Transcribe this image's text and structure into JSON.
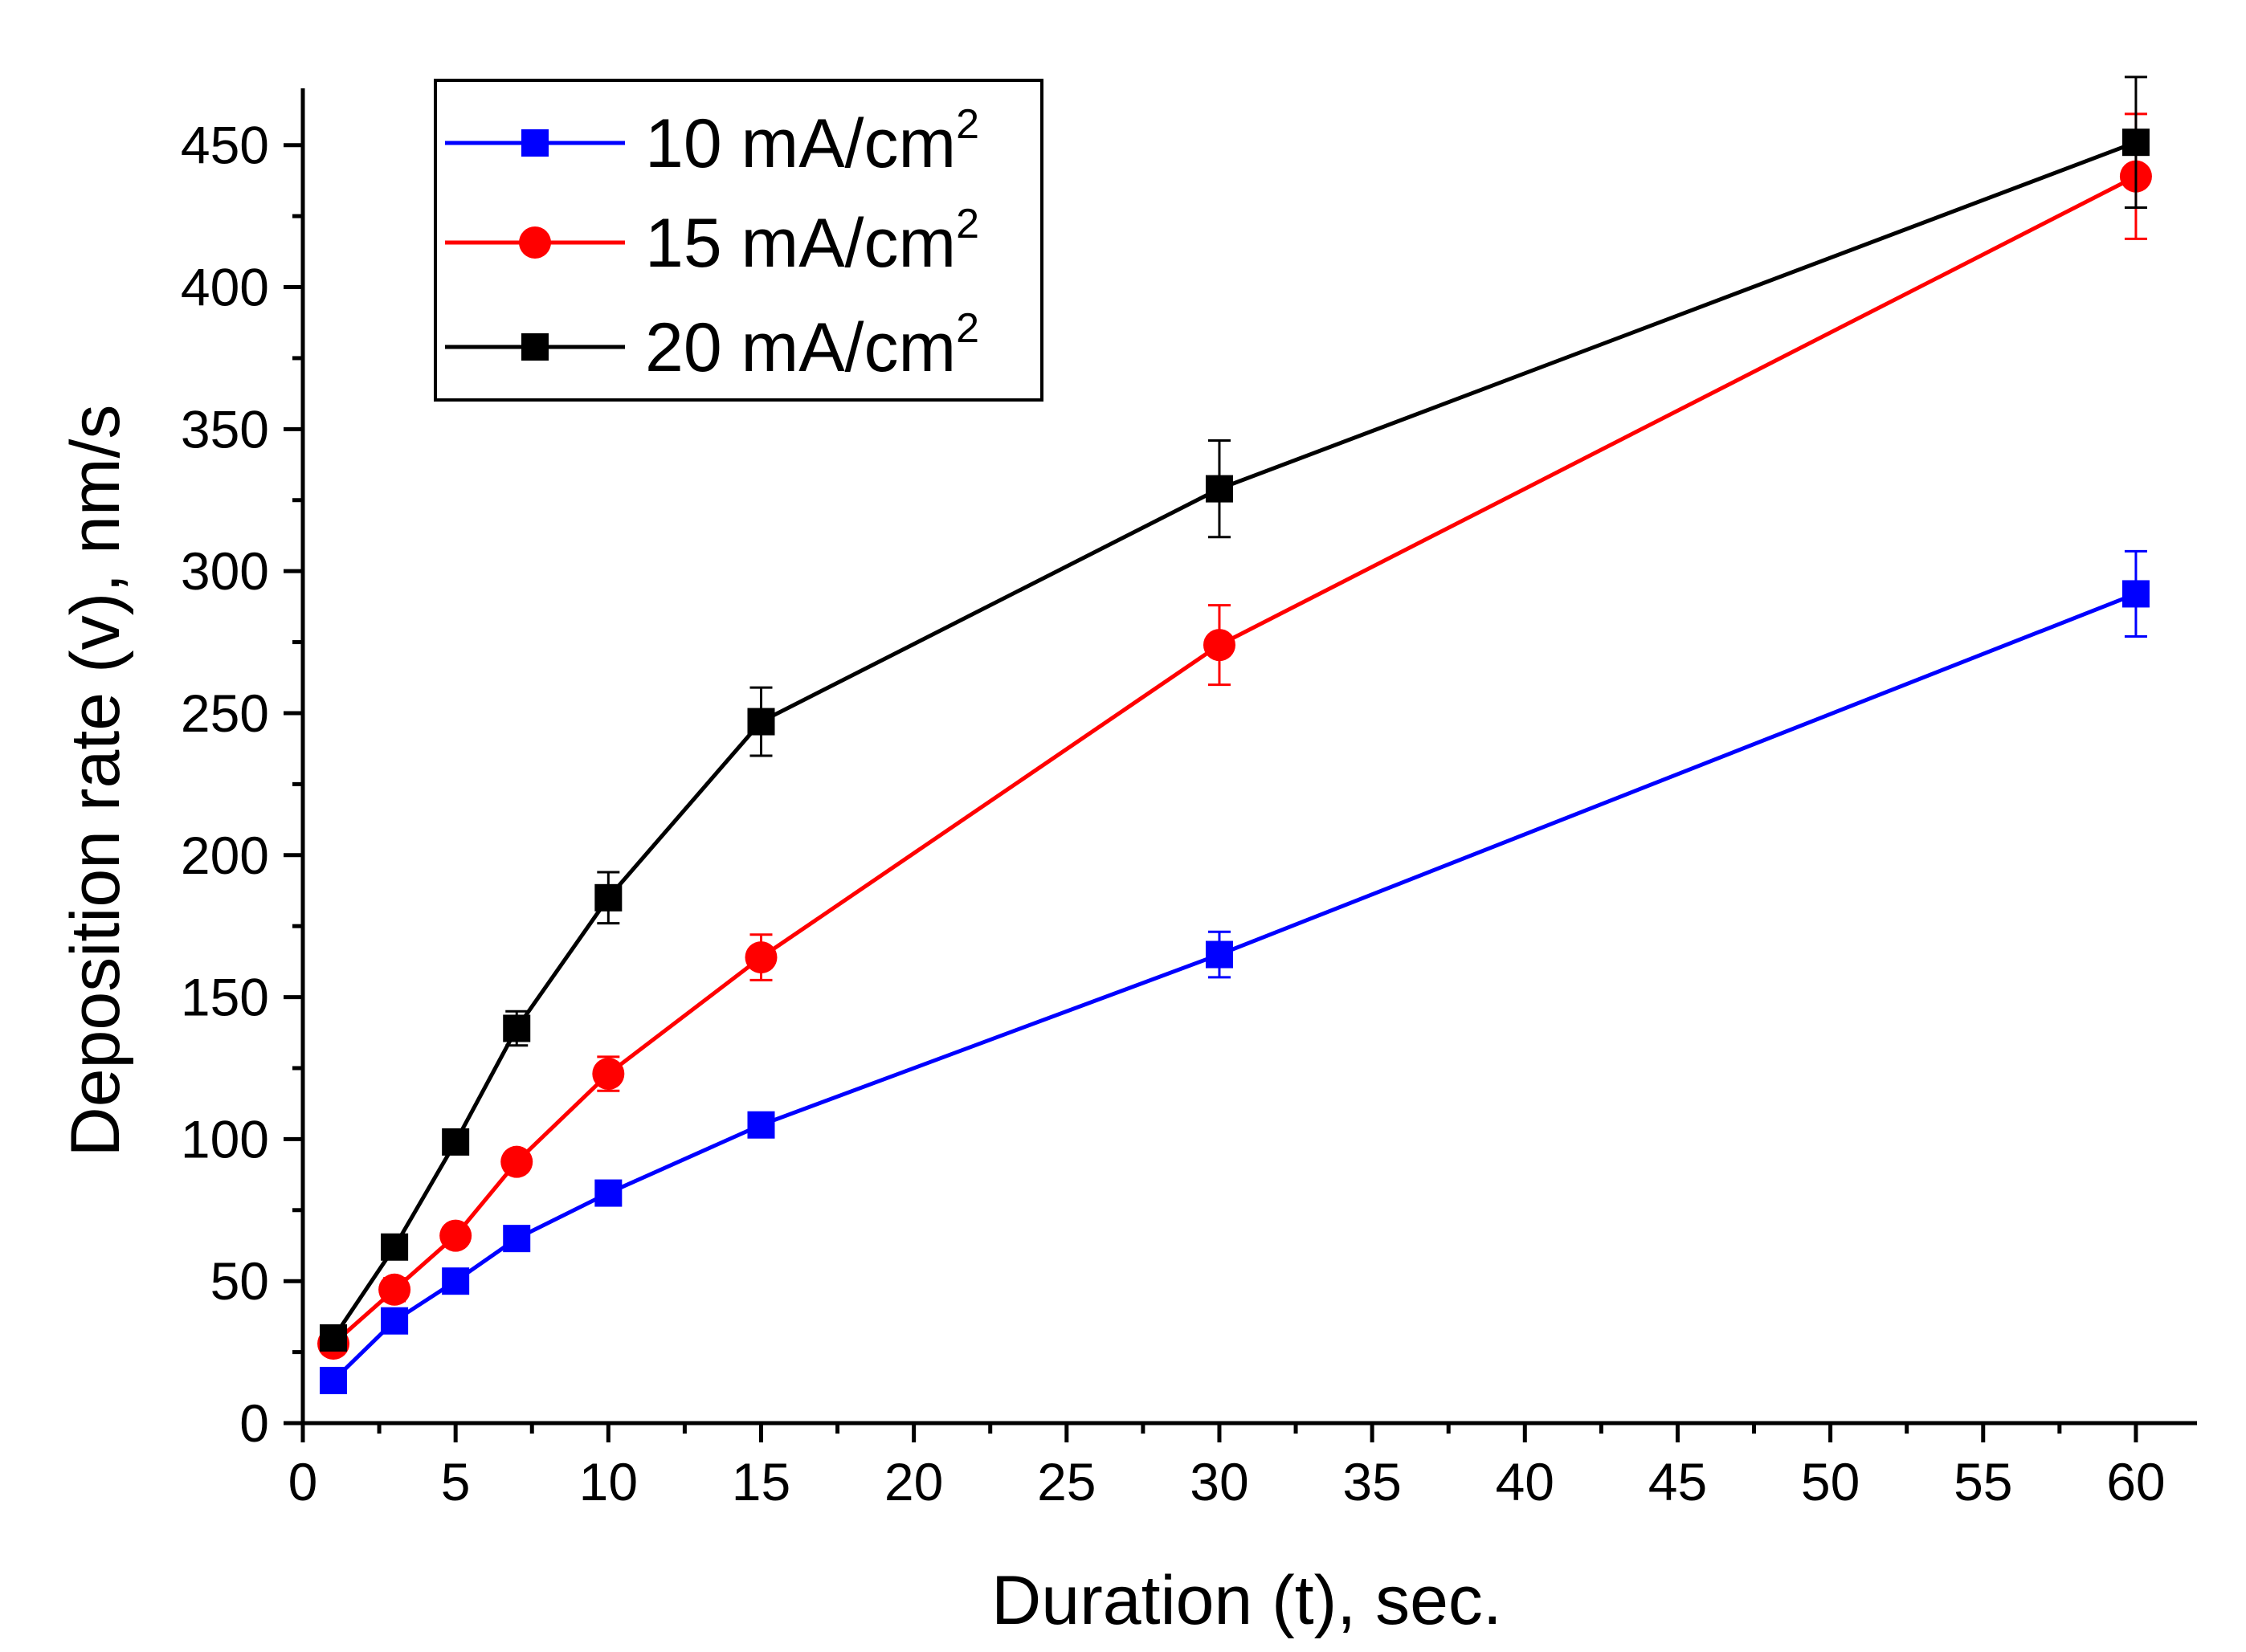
{
  "chart_data": {
    "type": "line",
    "title": "",
    "xlabel": "Duration (t), sec.",
    "ylabel": "Deposition rate (v), nm/s",
    "xlim": [
      0,
      62
    ],
    "ylim": [
      0,
      470
    ],
    "x_ticks": [
      0,
      5,
      10,
      15,
      20,
      25,
      30,
      35,
      40,
      45,
      50,
      55,
      60
    ],
    "y_ticks": [
      0,
      50,
      100,
      150,
      200,
      250,
      300,
      350,
      400,
      450
    ],
    "x_tick_labels": [
      "0",
      "5",
      "10",
      "15",
      "20",
      "25",
      "30",
      "35",
      "40",
      "45",
      "50",
      "55",
      "60"
    ],
    "y_tick_labels": [
      "0",
      "50",
      "100",
      "150",
      "200",
      "250",
      "300",
      "350",
      "400",
      "450"
    ],
    "grid": false,
    "legend_position": "top-left",
    "x": [
      1,
      3,
      5,
      7,
      10,
      15,
      30,
      60
    ],
    "series": [
      {
        "name": "10 mA/cm2",
        "label_main": "10 mA/cm",
        "label_sup": "2",
        "color": "#0000ff",
        "marker": "square",
        "values": [
          15,
          36,
          50,
          65,
          81,
          105,
          165,
          292
        ],
        "errors": [
          3,
          4,
          3,
          3,
          4,
          4,
          8,
          15
        ]
      },
      {
        "name": "15 mA/cm2",
        "label_main": "15 mA/cm",
        "label_sup": "2",
        "color": "#ff0000",
        "marker": "circle",
        "values": [
          28,
          47,
          66,
          92,
          123,
          164,
          274,
          439
        ],
        "errors": [
          3,
          4,
          3,
          3,
          6,
          8,
          14,
          22
        ]
      },
      {
        "name": "20 mA/cm2",
        "label_main": "20 mA/cm",
        "label_sup": "2",
        "color": "#000000",
        "marker": "square",
        "values": [
          30,
          62,
          99,
          139,
          185,
          247,
          329,
          451
        ],
        "errors": [
          3,
          4,
          3,
          6,
          9,
          12,
          17,
          23
        ]
      }
    ]
  }
}
